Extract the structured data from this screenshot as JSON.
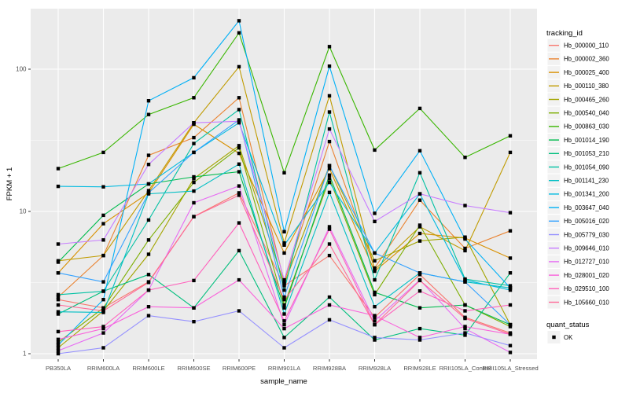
{
  "figure": {
    "panel_bg": "#EBEBEB",
    "grid_color": "#FFFFFF",
    "tick_label_color": "#4D4D4D",
    "marker_color": "#000000",
    "legend_key_bg": "#F2F2F2",
    "legend_tracking_title": "tracking_id",
    "legend_quant_title": "quant_status",
    "legend_quant_items": [
      {
        "label": "OK",
        "marker": "black-square"
      }
    ]
  },
  "chart_data": {
    "type": "line",
    "title": "",
    "xlabel": "sample_name",
    "ylabel": "FPKM + 1",
    "yscale": "log10",
    "ylim": [
      0.92,
      270
    ],
    "y_ticks": [
      1,
      10,
      100
    ],
    "grid": "major-and-minor",
    "legend_position": "right",
    "marker": "black-square (quant_status OK)",
    "categories": [
      "PB350LA",
      "RRIM600LA",
      "RRIM600LE",
      "RRIM600SE",
      "RRIM600PE",
      "RRIM901LA",
      "RRIM928BA",
      "RRIM928LA",
      "RRIM928LE",
      "RRII105LA_Control",
      "RRII105LA_Stressed"
    ],
    "series": [
      {
        "name": "Hb_000000_110",
        "color": "#F8766D",
        "values": [
          2.4,
          2.1,
          3.2,
          9.2,
          13.5,
          3.0,
          4.9,
          1.8,
          3.6,
          1.8,
          1.4
        ]
      },
      {
        "name": "Hb_000002_360",
        "color": "#EA8331",
        "values": [
          2.5,
          4.9,
          24.8,
          33,
          63,
          3.2,
          31,
          4.0,
          12,
          5.5,
          7.3
        ]
      },
      {
        "name": "Hb_000025_400",
        "color": "#D89000",
        "values": [
          3.7,
          8.2,
          13.5,
          41,
          25.6,
          5.1,
          20,
          3.8,
          7.0,
          6.5,
          4.7
        ]
      },
      {
        "name": "Hb_000110_380",
        "color": "#C09B00",
        "values": [
          4.5,
          4.9,
          14,
          42,
          104,
          6.0,
          65,
          3.9,
          7.8,
          5.3,
          26
        ]
      },
      {
        "name": "Hb_000465_260",
        "color": "#A3A500",
        "values": [
          1.1,
          2.0,
          5.0,
          17,
          29,
          3.1,
          21,
          4.5,
          6.2,
          6.6,
          1.6
        ]
      },
      {
        "name": "Hb_000540_040",
        "color": "#7CAE00",
        "values": [
          1.2,
          2.1,
          6.3,
          16,
          28,
          2.2,
          17,
          2.6,
          8.0,
          2.2,
          1.55
        ]
      },
      {
        "name": "Hb_000863_030",
        "color": "#39B600",
        "values": [
          20,
          26,
          48,
          63,
          180,
          18.7,
          144,
          27,
          53,
          24,
          34
        ]
      },
      {
        "name": "Hb_001014_190",
        "color": "#00BB4E",
        "values": [
          4.4,
          9.4,
          15.6,
          17.5,
          19,
          2.1,
          18,
          2.7,
          2.1,
          2.2,
          1.6
        ]
      },
      {
        "name": "Hb_001053_210",
        "color": "#00BF7D",
        "values": [
          1.9,
          2.75,
          3.6,
          2.1,
          5.3,
          1.3,
          2.5,
          1.25,
          1.5,
          1.35,
          3.7
        ]
      },
      {
        "name": "Hb_001054_090",
        "color": "#00C1A3",
        "values": [
          2.6,
          2.75,
          8.7,
          30,
          52,
          2.8,
          50,
          3.3,
          18.7,
          3.35,
          3.0
        ]
      },
      {
        "name": "Hb_001141_230",
        "color": "#00BFC4",
        "values": [
          1.97,
          1.95,
          13.3,
          13.9,
          21.5,
          1.9,
          13.6,
          2.14,
          3.7,
          3.2,
          2.9
        ]
      },
      {
        "name": "Hb_001341_200",
        "color": "#00BAE0",
        "values": [
          15,
          14.9,
          15.6,
          26,
          42,
          5.8,
          16,
          5.1,
          13.3,
          3.3,
          2.8
        ]
      },
      {
        "name": "Hb_003647_040",
        "color": "#00B0F6",
        "values": [
          1.15,
          2.4,
          60,
          87,
          219,
          7.2,
          105,
          9.7,
          26.7,
          6.4,
          2.9
        ]
      },
      {
        "name": "Hb_005016_020",
        "color": "#35A2FF",
        "values": [
          3.7,
          3.2,
          13.5,
          26,
          44,
          2.5,
          21,
          5.1,
          3.7,
          3.2,
          1.6
        ]
      },
      {
        "name": "Hb_005779_030",
        "color": "#9590FF",
        "values": [
          1.0,
          1.1,
          1.85,
          1.68,
          2.0,
          1.1,
          1.73,
          1.3,
          1.25,
          1.4,
          1.14
        ]
      },
      {
        "name": "Hb_009646_010",
        "color": "#C77CFF",
        "values": [
          5.9,
          6.3,
          21.4,
          42,
          43,
          3.3,
          38,
          8.5,
          13.3,
          11,
          9.8
        ]
      },
      {
        "name": "Hb_012727_010",
        "color": "#E76BF3",
        "values": [
          1.05,
          1.4,
          2.8,
          11.5,
          15.1,
          1.6,
          7.8,
          1.7,
          3.3,
          1.5,
          1.02
        ]
      },
      {
        "name": "Hb_028001_020",
        "color": "#FA62DB",
        "values": [
          1.26,
          1.5,
          2.14,
          2.1,
          3.3,
          1.5,
          2.2,
          1.85,
          1.3,
          1.55,
          1.37
        ]
      },
      {
        "name": "Hb_029510_100",
        "color": "#FF62BC",
        "values": [
          1.43,
          1.55,
          2.8,
          3.27,
          8.3,
          1.7,
          7.5,
          1.6,
          2.76,
          2.0,
          2.2
        ]
      },
      {
        "name": "Hb_105660_010",
        "color": "#FF6A98",
        "values": [
          2.2,
          2.0,
          3.17,
          9.2,
          13,
          2.4,
          5.9,
          1.6,
          3.27,
          1.77,
          1.37
        ]
      }
    ]
  }
}
